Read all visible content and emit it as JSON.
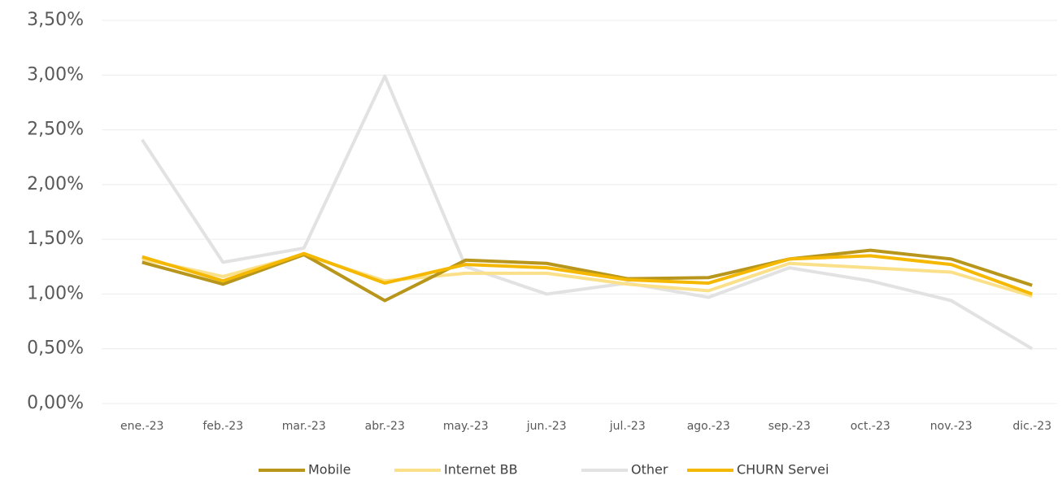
{
  "chart_data": {
    "type": "line",
    "categories": [
      "ene.-23",
      "feb.-23",
      "mar.-23",
      "abr.-23",
      "may.-23",
      "jun.-23",
      "jul.-23",
      "ago.-23",
      "sep.-23",
      "oct.-23",
      "nov.-23",
      "dic.-23"
    ],
    "series": [
      {
        "name": "Mobile",
        "color": "#b8961c",
        "values": [
          1.29,
          1.09,
          1.36,
          0.94,
          1.31,
          1.28,
          1.14,
          1.15,
          1.32,
          1.4,
          1.32,
          1.08
        ]
      },
      {
        "name": "Internet BB",
        "color": "#fbe08a",
        "values": [
          1.32,
          1.16,
          1.36,
          1.12,
          1.19,
          1.19,
          1.09,
          1.03,
          1.28,
          1.24,
          1.2,
          0.98
        ]
      },
      {
        "name": "Other",
        "color": "#e2e2e2",
        "values": [
          2.41,
          1.29,
          1.42,
          2.99,
          1.25,
          1.0,
          1.1,
          0.97,
          1.24,
          1.12,
          0.94,
          0.5
        ]
      },
      {
        "name": "CHURN Servei",
        "color": "#f5b800",
        "values": [
          1.34,
          1.12,
          1.37,
          1.1,
          1.27,
          1.24,
          1.13,
          1.1,
          1.32,
          1.35,
          1.27,
          1.0
        ]
      }
    ],
    "ylim": [
      0,
      3.5
    ],
    "yticks": [
      {
        "value": 0,
        "label": "0,00%"
      },
      {
        "value": 0.5,
        "label": "0,50%"
      },
      {
        "value": 1,
        "label": "1,00%"
      },
      {
        "value": 1.5,
        "label": "1,50%"
      },
      {
        "value": 2,
        "label": "2,00%"
      },
      {
        "value": 2.5,
        "label": "2,50%"
      },
      {
        "value": 3,
        "label": "3,00%"
      },
      {
        "value": 3.5,
        "label": "3,50%"
      }
    ],
    "grid": true,
    "legend": "bottom"
  }
}
